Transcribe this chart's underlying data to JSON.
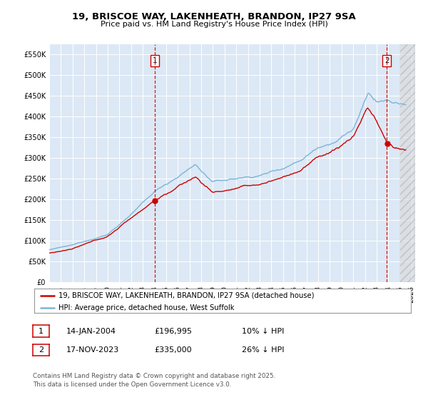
{
  "title_line1": "19, BRISCOE WAY, LAKENHEATH, BRANDON, IP27 9SA",
  "title_line2": "Price paid vs. HM Land Registry's House Price Index (HPI)",
  "legend_line1": "19, BRISCOE WAY, LAKENHEATH, BRANDON, IP27 9SA (detached house)",
  "legend_line2": "HPI: Average price, detached house, West Suffolk",
  "annotation1_date": "14-JAN-2004",
  "annotation1_price": "£196,995",
  "annotation1_hpi": "10% ↓ HPI",
  "annotation2_date": "17-NOV-2023",
  "annotation2_price": "£335,000",
  "annotation2_hpi": "26% ↓ HPI",
  "footnote": "Contains HM Land Registry data © Crown copyright and database right 2025.\nThis data is licensed under the Open Government Licence v3.0.",
  "ylim": [
    0,
    575000
  ],
  "yticks": [
    0,
    50000,
    100000,
    150000,
    200000,
    250000,
    300000,
    350000,
    400000,
    450000,
    500000,
    550000
  ],
  "ytick_labels": [
    "£0",
    "£50K",
    "£100K",
    "£150K",
    "£200K",
    "£250K",
    "£300K",
    "£350K",
    "£400K",
    "£450K",
    "£500K",
    "£550K"
  ],
  "hpi_color": "#7ab5d9",
  "price_color": "#cc0000",
  "vline_color": "#cc0000",
  "bg_color": "#dce8f5",
  "grid_color": "#ffffff",
  "annotation_box_color": "#cc0000",
  "purchase1_x": 2004.04,
  "purchase1_y": 196995,
  "purchase2_x": 2023.88,
  "purchase2_y": 335000,
  "xmin": 1995.0,
  "xmax": 2026.3
}
